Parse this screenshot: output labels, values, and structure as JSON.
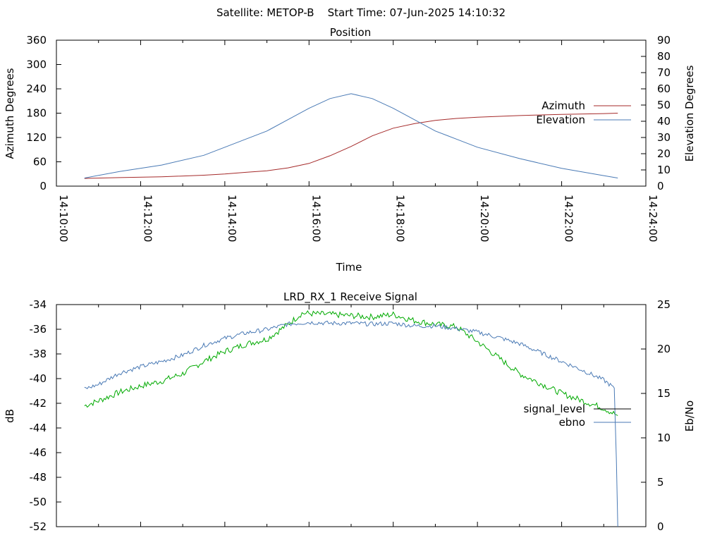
{
  "page_title": "Satellite: METOP-B    Start Time: 07-Jun-2025 14:10:32",
  "chart_data": [
    {
      "type": "line",
      "title": "Position",
      "xlabel": "Time",
      "ylabel": "Azimuth Degrees",
      "y2label": "Elevation Degrees",
      "xlim": [
        "14:10:00",
        "14:24:00"
      ],
      "ylim": [
        0,
        360
      ],
      "y2lim": [
        0,
        90
      ],
      "x_ticks": [
        "14:10:00",
        "14:12:00",
        "14:14:00",
        "14:16:00",
        "14:18:00",
        "14:20:00",
        "14:22:00",
        "14:24:00"
      ],
      "y_ticks": [
        "0",
        "60",
        "120",
        "180",
        "240",
        "300",
        "360"
      ],
      "y2_ticks": [
        "0",
        "10",
        "20",
        "30",
        "40",
        "50",
        "60",
        "70",
        "80",
        "90"
      ],
      "legend": "right",
      "grid": false,
      "series": [
        {
          "name": "Azimuth",
          "axis": "left",
          "color": "#a52a2a",
          "points": [
            [
              "14:10:40",
              19
            ],
            [
              "14:11:30",
              21
            ],
            [
              "14:12:30",
              23
            ],
            [
              "14:13:30",
              27
            ],
            [
              "14:14:00",
              30
            ],
            [
              "14:14:30",
              34
            ],
            [
              "14:15:00",
              38
            ],
            [
              "14:15:30",
              45
            ],
            [
              "14:16:00",
              56
            ],
            [
              "14:16:30",
              75
            ],
            [
              "14:17:00",
              98
            ],
            [
              "14:17:30",
              124
            ],
            [
              "14:18:00",
              143
            ],
            [
              "14:18:30",
              154
            ],
            [
              "14:19:00",
              162
            ],
            [
              "14:19:30",
              167
            ],
            [
              "14:20:00",
              170
            ],
            [
              "14:21:00",
              174
            ],
            [
              "14:22:00",
              177
            ],
            [
              "14:23:00",
              179
            ],
            [
              "14:23:20",
              180
            ]
          ]
        },
        {
          "name": "Elevation",
          "axis": "right",
          "color": "#4a7ab5",
          "points": [
            [
              "14:10:40",
              5
            ],
            [
              "14:11:30",
              9
            ],
            [
              "14:12:30",
              13
            ],
            [
              "14:13:30",
              19
            ],
            [
              "14:14:00",
              24
            ],
            [
              "14:14:30",
              29
            ],
            [
              "14:15:00",
              34
            ],
            [
              "14:15:30",
              41
            ],
            [
              "14:16:00",
              48
            ],
            [
              "14:16:30",
              54
            ],
            [
              "14:17:00",
              57
            ],
            [
              "14:17:30",
              54
            ],
            [
              "14:18:00",
              48
            ],
            [
              "14:18:30",
              41
            ],
            [
              "14:19:00",
              34
            ],
            [
              "14:19:30",
              29
            ],
            [
              "14:20:00",
              24
            ],
            [
              "14:21:00",
              17
            ],
            [
              "14:22:00",
              11
            ],
            [
              "14:23:00",
              6.5
            ],
            [
              "14:23:20",
              5
            ]
          ]
        }
      ]
    },
    {
      "type": "line",
      "title": "LRD_RX_1 Receive Signal",
      "ylabel": "dB",
      "y2label": "Eb/No",
      "xlim": [
        "14:10:00",
        "14:24:00"
      ],
      "ylim": [
        -52,
        -34
      ],
      "y2lim": [
        0,
        25
      ],
      "y_ticks": [
        "-34",
        "-36",
        "-38",
        "-40",
        "-42",
        "-44",
        "-46",
        "-48",
        "-50",
        "-52"
      ],
      "y2_ticks": [
        "0",
        "5",
        "10",
        "15",
        "20",
        "25"
      ],
      "legend": "right",
      "grid": false,
      "series": [
        {
          "name": "signal_level",
          "axis": "left",
          "color": "#00aa00",
          "legend_color": "#000000",
          "points": [
            [
              "14:10:40",
              -42.2
            ],
            [
              "14:11:00",
              -41.8
            ],
            [
              "14:11:30",
              -41.1
            ],
            [
              "14:12:00",
              -40.6
            ],
            [
              "14:12:30",
              -40.2
            ],
            [
              "14:13:00",
              -39.6
            ],
            [
              "14:13:30",
              -38.6
            ],
            [
              "14:14:00",
              -37.8
            ],
            [
              "14:14:30",
              -37.2
            ],
            [
              "14:15:00",
              -36.8
            ],
            [
              "14:15:30",
              -35.6
            ],
            [
              "14:15:50",
              -34.7
            ],
            [
              "14:16:30",
              -34.8
            ],
            [
              "14:17:00",
              -34.9
            ],
            [
              "14:17:30",
              -35.0
            ],
            [
              "14:18:00",
              -34.8
            ],
            [
              "14:18:30",
              -35.3
            ],
            [
              "14:19:00",
              -35.6
            ],
            [
              "14:19:30",
              -35.8
            ],
            [
              "14:20:00",
              -37.0
            ],
            [
              "14:20:30",
              -38.3
            ],
            [
              "14:21:00",
              -39.6
            ],
            [
              "14:21:30",
              -40.4
            ],
            [
              "14:22:00",
              -41.2
            ],
            [
              "14:22:30",
              -41.8
            ],
            [
              "14:23:00",
              -42.4
            ],
            [
              "14:23:20",
              -43.0
            ]
          ]
        },
        {
          "name": "ebno",
          "axis": "right",
          "color": "#4a7ab5",
          "points": [
            [
              "14:10:40",
              15.5
            ],
            [
              "14:11:00",
              16.0
            ],
            [
              "14:11:30",
              17.3
            ],
            [
              "14:12:00",
              18.0
            ],
            [
              "14:12:30",
              18.6
            ],
            [
              "14:13:00",
              19.3
            ],
            [
              "14:13:30",
              20.4
            ],
            [
              "14:14:00",
              21.2
            ],
            [
              "14:14:30",
              21.8
            ],
            [
              "14:15:00",
              22.2
            ],
            [
              "14:15:30",
              22.8
            ],
            [
              "14:16:00",
              23.0
            ],
            [
              "14:16:30",
              22.9
            ],
            [
              "14:17:00",
              22.9
            ],
            [
              "14:17:30",
              22.8
            ],
            [
              "14:18:00",
              22.9
            ],
            [
              "14:18:30",
              22.6
            ],
            [
              "14:19:00",
              22.6
            ],
            [
              "14:19:30",
              22.3
            ],
            [
              "14:20:00",
              21.9
            ],
            [
              "14:20:30",
              21.3
            ],
            [
              "14:21:00",
              20.6
            ],
            [
              "14:21:30",
              19.6
            ],
            [
              "14:22:00",
              18.6
            ],
            [
              "14:22:30",
              17.6
            ],
            [
              "14:23:00",
              16.5
            ],
            [
              "14:23:15",
              15.6
            ],
            [
              "14:23:18",
              7.5
            ],
            [
              "14:23:20",
              0
            ]
          ]
        }
      ]
    }
  ]
}
